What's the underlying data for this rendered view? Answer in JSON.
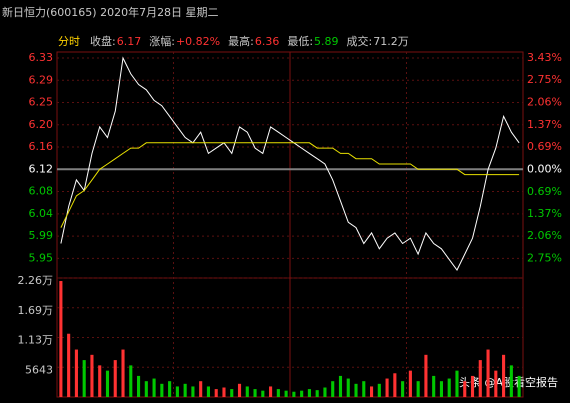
{
  "header": {
    "title": "新日恒力(600165) 2020年7月28日 星期二",
    "mode": "分时",
    "info": [
      {
        "label": "收盘:",
        "value": "6.17"
      },
      {
        "label": "涨幅:",
        "value": "+0.82%"
      },
      {
        "label": "最高:",
        "value": "6.36"
      },
      {
        "label": "最低:",
        "value": "5.89"
      },
      {
        "label": "成交:",
        "value": "71.2万"
      }
    ]
  },
  "watermark": "头条 @A股看空报告",
  "chart_data": [
    {
      "type": "line",
      "ylim": [
        5.93,
        6.33
      ],
      "yticks": [
        {
          "value": 6.33,
          "label": "6.33"
        },
        {
          "value": 6.288,
          "label": "6.29"
        },
        {
          "value": 6.246,
          "label": "6.25"
        },
        {
          "value": 6.204,
          "label": "6.20"
        },
        {
          "value": 6.162,
          "label": "6.16"
        },
        {
          "value": 6.12,
          "label": "6.12"
        },
        {
          "value": 6.078,
          "label": "6.08"
        },
        {
          "value": 6.036,
          "label": "6.04"
        },
        {
          "value": 5.994,
          "label": "5.99"
        },
        {
          "value": 5.952,
          "label": "5.95"
        }
      ],
      "y2lim": [
        -3.1,
        3.43
      ],
      "y2ticks": [
        {
          "value": 3.43,
          "label": "3.43%"
        },
        {
          "value": 2.75,
          "label": "2.75%"
        },
        {
          "value": 2.06,
          "label": "2.06%"
        },
        {
          "value": 1.37,
          "label": "1.37%"
        },
        {
          "value": 0.69,
          "label": "0.69%"
        },
        {
          "value": 0,
          "label": "0.00%"
        },
        {
          "value": -0.69,
          "label": "0.69%"
        },
        {
          "value": -1.37,
          "label": "1.37%"
        },
        {
          "value": -2.06,
          "label": "2.06%"
        },
        {
          "value": -2.75,
          "label": "2.75%"
        }
      ],
      "series": [
        {
          "color": "#ffffff",
          "values": [
            5.98,
            6.05,
            6.1,
            6.08,
            6.15,
            6.2,
            6.18,
            6.23,
            6.33,
            6.3,
            6.28,
            6.27,
            6.25,
            6.24,
            6.22,
            6.2,
            6.18,
            6.17,
            6.19,
            6.15,
            6.16,
            6.17,
            6.15,
            6.2,
            6.19,
            6.16,
            6.15,
            6.2,
            6.19,
            6.18,
            6.17,
            6.16,
            6.15,
            6.14,
            6.13,
            6.1,
            6.06,
            6.02,
            6.01,
            5.98,
            6.0,
            5.97,
            5.99,
            6.0,
            5.98,
            5.99,
            5.96,
            6.0,
            5.98,
            5.97,
            5.95,
            5.93,
            5.96,
            5.99,
            6.05,
            6.12,
            6.16,
            6.22,
            6.19,
            6.17
          ]
        },
        {
          "color": "#e8e000",
          "values": [
            6.01,
            6.04,
            6.07,
            6.08,
            6.1,
            6.12,
            6.13,
            6.14,
            6.15,
            6.16,
            6.16,
            6.17,
            6.17,
            6.17,
            6.17,
            6.17,
            6.17,
            6.17,
            6.17,
            6.17,
            6.17,
            6.17,
            6.17,
            6.17,
            6.17,
            6.17,
            6.17,
            6.17,
            6.17,
            6.17,
            6.17,
            6.17,
            6.17,
            6.16,
            6.16,
            6.16,
            6.15,
            6.15,
            6.14,
            6.14,
            6.14,
            6.13,
            6.13,
            6.13,
            6.13,
            6.13,
            6.12,
            6.12,
            6.12,
            6.12,
            6.12,
            6.12,
            6.11,
            6.11,
            6.11,
            6.11,
            6.11,
            6.11,
            6.11,
            6.11
          ]
        }
      ]
    },
    {
      "type": "bar",
      "ylim": [
        0,
        22572
      ],
      "yticks": [
        {
          "value": 22572,
          "label": "2.26万"
        },
        {
          "value": 16929,
          "label": "1.69万"
        },
        {
          "value": 11286,
          "label": "1.13万"
        },
        5643
      ],
      "colors": {
        "up": "#ff3232",
        "down": "#00c800"
      },
      "values": [
        22000,
        12000,
        9000,
        7000,
        8000,
        6000,
        5000,
        7000,
        9000,
        6000,
        4000,
        3000,
        3500,
        2500,
        3000,
        2000,
        2500,
        2000,
        3000,
        2000,
        1500,
        1800,
        1500,
        2500,
        2000,
        1500,
        1200,
        2000,
        1500,
        1200,
        1000,
        1200,
        1500,
        1300,
        1800,
        3000,
        4000,
        3500,
        2500,
        3000,
        2000,
        2500,
        3500,
        4500,
        3000,
        5000,
        3000,
        8000,
        4000,
        3000,
        3500,
        5000,
        3000,
        4000,
        7000,
        9000,
        5000,
        8000,
        6000,
        4000
      ]
    }
  ]
}
